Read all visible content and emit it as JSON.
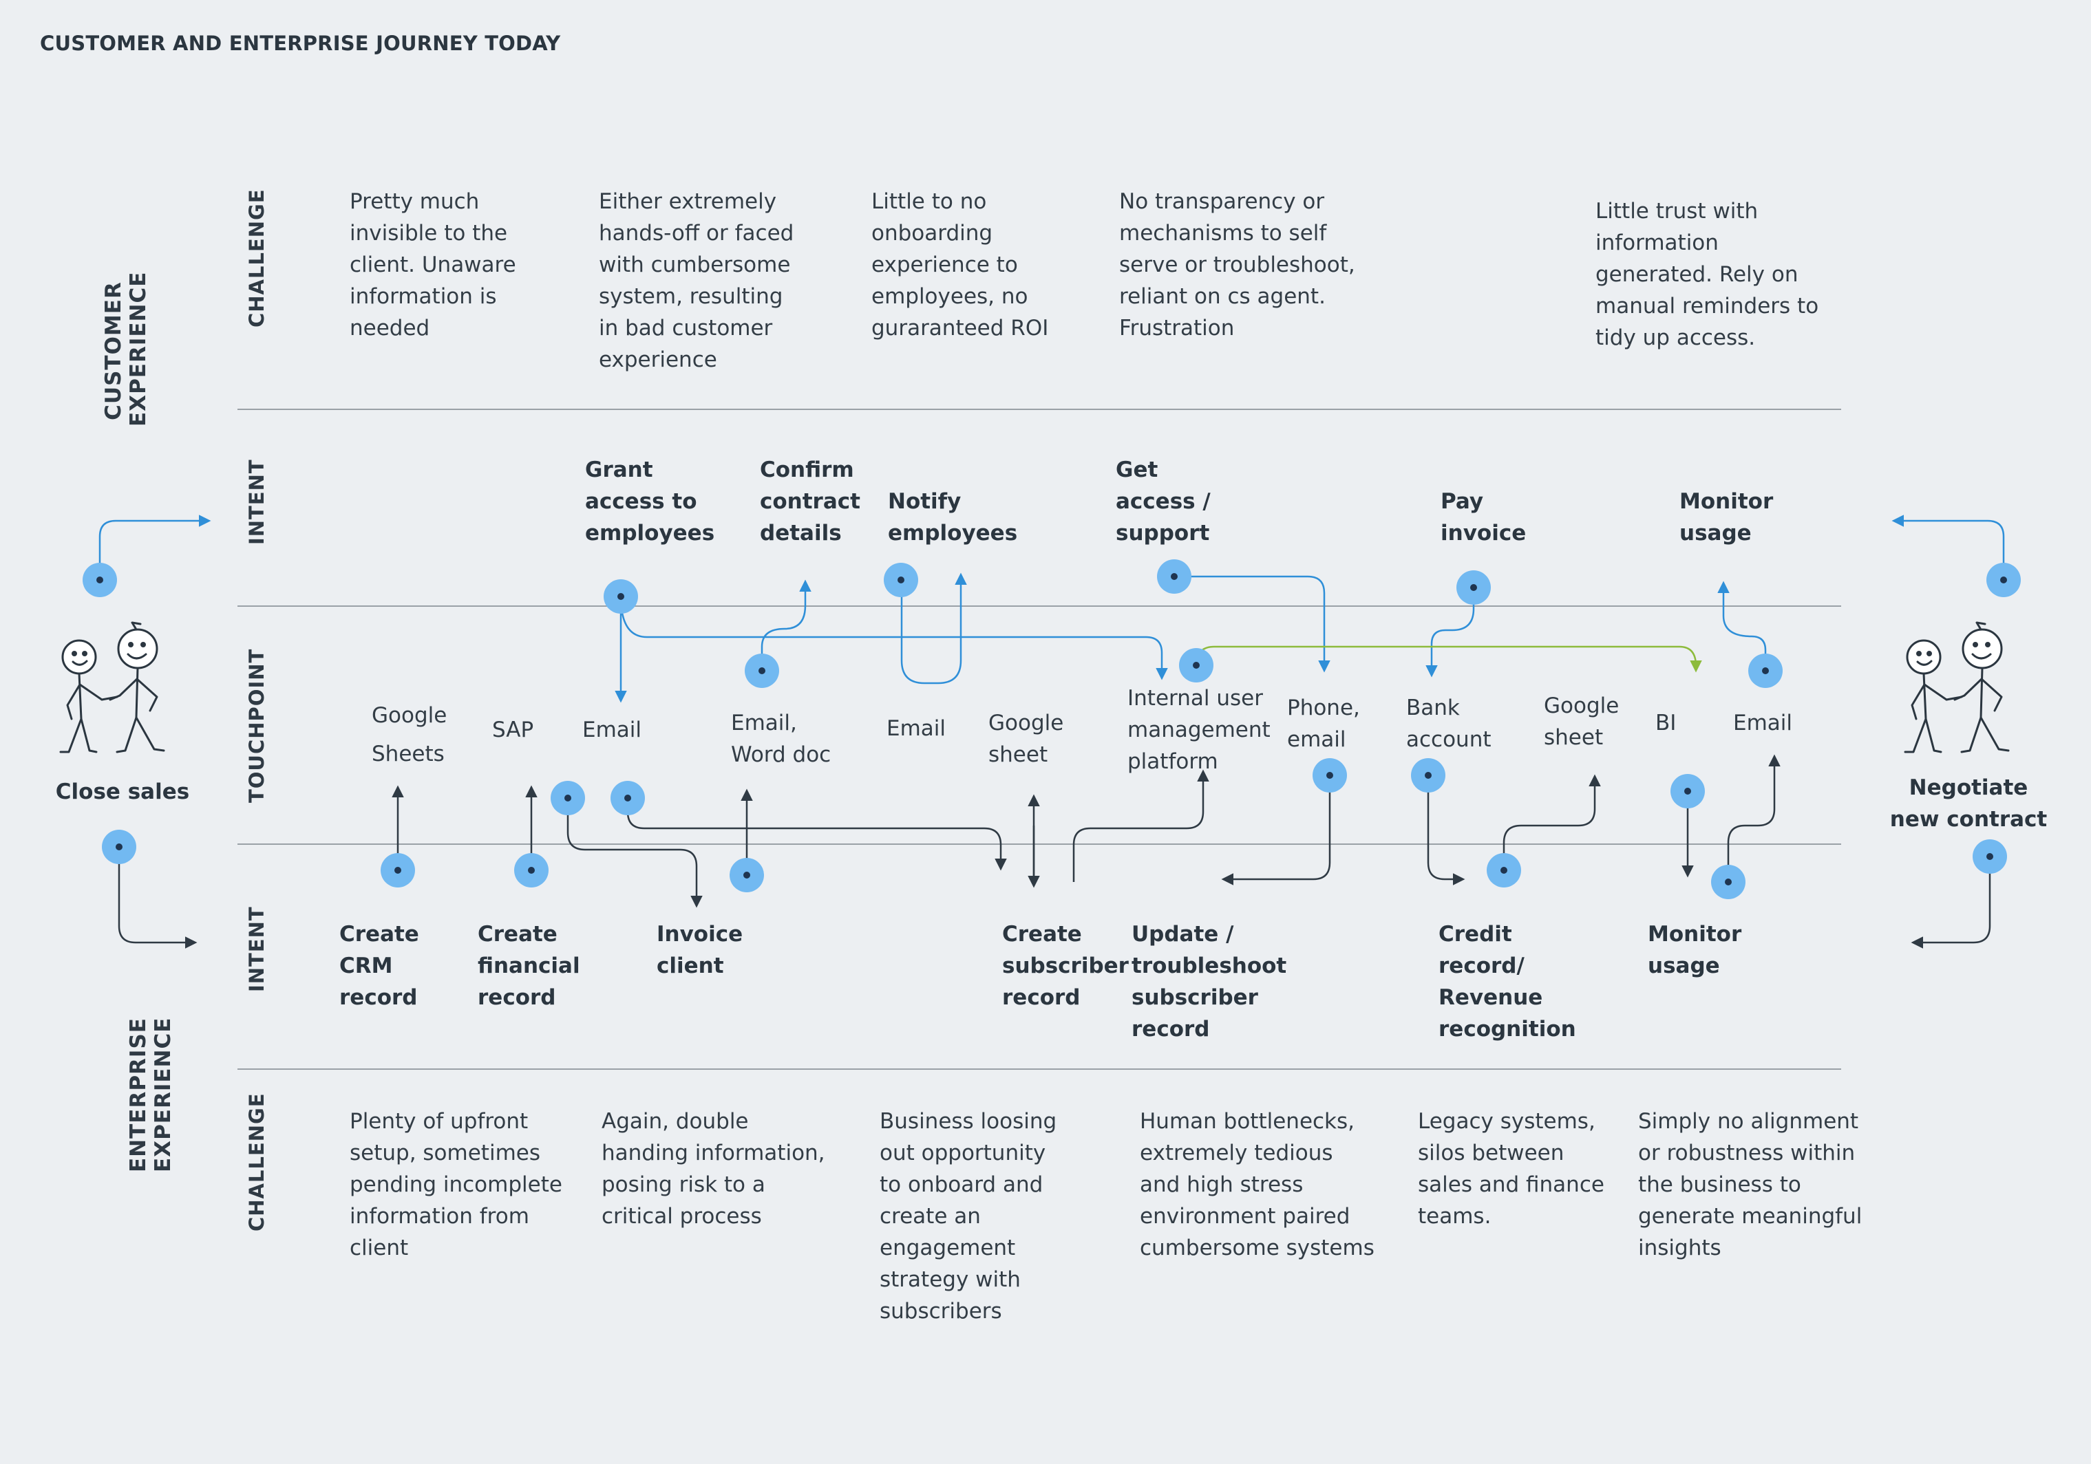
{
  "title": "CUSTOMER AND ENTERPRISE JOURNEY TODAY",
  "sections": {
    "customer": "CUSTOMER\nEXPERIENCE",
    "enterprise": "ENTERPRISE\nEXPERIENCE"
  },
  "row_labels": {
    "challenge_top": "CHALLENGE",
    "intent_top": "INTENT",
    "touchpoint": "TOUCHPOINT",
    "intent_bottom": "INTENT",
    "challenge_bottom": "CHALLENGE"
  },
  "actors": {
    "left": "Close sales",
    "right": "Negotiate\nnew contract"
  },
  "customer_challenges": [
    "Pretty much\ninvisible to the\nclient. Unaware\ninformation is\nneeded",
    "Either extremely\nhands-off or faced\nwith cumbersome\nsystem, resulting\nin bad customer\nexperience",
    "Little to no\nonboarding\nexperience to\nemployees, no\nguraranteed ROI",
    "No transparency or\nmechanisms to self\nserve or troubleshoot,\nreliant on cs agent.\nFrustration",
    "Little trust  with\ninformation\ngenerated. Rely on\nmanual reminders to\ntidy up access."
  ],
  "customer_intents": [
    "Grant\naccess to\nemployees",
    "Confirm\ncontract\ndetails",
    "Notify\nemployees",
    "Get\naccess /\nsupport",
    "Pay\ninvoice",
    "Monitor\nusage"
  ],
  "touchpoints": [
    "Google\nSheets",
    "SAP",
    "Email",
    "Email,\nWord doc",
    "Email",
    "Google\nsheet",
    "Internal user\nmanagement\nplatform",
    "Phone,\nemail",
    "Bank\naccount",
    "Google\nsheet",
    "BI",
    "Email"
  ],
  "enterprise_intents": [
    "Create\nCRM\nrecord",
    "Create\nfinancial\nrecord",
    "Invoice\nclient",
    "Create\nsubscriber\nrecord",
    "Update /\ntroubleshoot\nsubscriber\nrecord",
    "Credit\nrecord/\nRevenue\nrecognition",
    "Monitor\nusage"
  ],
  "enterprise_challenges": [
    "Plenty of upfront\nsetup, sometimes\npending incomplete\ninformation from\nclient",
    "Again, double\nhanding information,\nposing risk to a\ncritical process",
    "Business loosing\nout opportunity\nto onboard and\ncreate an\nengagement\nstrategy with\nsubscribers",
    "Human bottlenecks,\nextremely tedious\nand high stress\nenvironment paired\ncumbersome systems",
    "Legacy systems,\nsilos between\nsales and finance\nteams.",
    "Simply no alignment\nor robustness within\nthe business to\ngenerate meaningful\ninsights"
  ],
  "colors": {
    "background": "#eceff2",
    "node": "#72b9f1",
    "customer_flow": "#2f8fd8",
    "enterprise_flow": "#2f3a44",
    "accent_flow": "#8dbb3c",
    "divider": "#9aa1a7"
  },
  "icons": [
    "handshake-people-icon"
  ]
}
